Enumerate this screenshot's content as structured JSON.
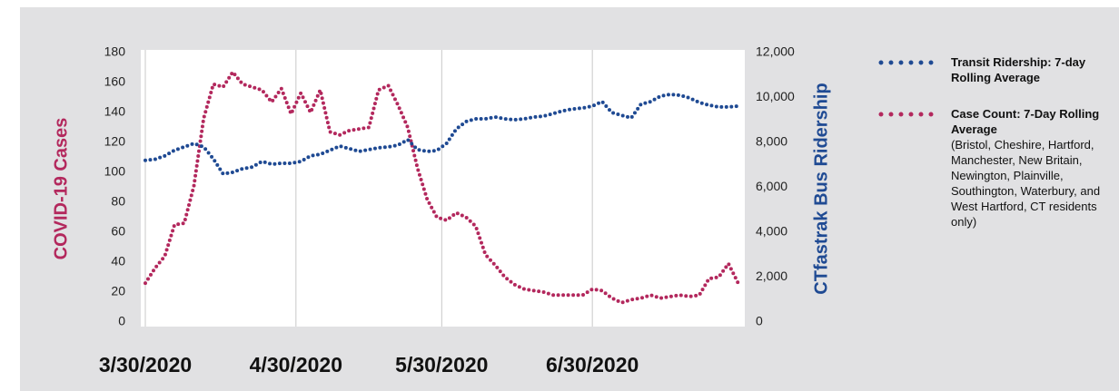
{
  "chart_data": {
    "type": "line",
    "x": [
      "3/30/2020",
      "4/1/2020",
      "4/3/2020",
      "4/5/2020",
      "4/7/2020",
      "4/9/2020",
      "4/11/2020",
      "4/13/2020",
      "4/15/2020",
      "4/17/2020",
      "4/19/2020",
      "4/21/2020",
      "4/23/2020",
      "4/25/2020",
      "4/27/2020",
      "4/29/2020",
      "5/1/2020",
      "5/3/2020",
      "5/5/2020",
      "5/7/2020",
      "5/9/2020",
      "5/11/2020",
      "5/13/2020",
      "5/15/2020",
      "5/17/2020",
      "5/19/2020",
      "5/21/2020",
      "5/23/2020",
      "5/25/2020",
      "5/27/2020",
      "5/29/2020",
      "5/31/2020",
      "6/2/2020",
      "6/4/2020",
      "6/6/2020",
      "6/8/2020",
      "6/10/2020",
      "6/12/2020",
      "6/14/2020",
      "6/16/2020",
      "6/18/2020",
      "6/20/2020",
      "6/22/2020",
      "6/24/2020",
      "6/26/2020",
      "6/28/2020",
      "6/30/2020",
      "7/2/2020",
      "7/4/2020",
      "7/6/2020",
      "7/8/2020",
      "7/10/2020",
      "7/12/2020",
      "7/14/2020",
      "7/16/2020",
      "7/18/2020",
      "7/20/2020",
      "7/22/2020",
      "7/24/2020",
      "7/26/2020",
      "7/28/2020",
      "7/30/2020"
    ],
    "series": [
      {
        "name": "Case Count: 7-Day Rolling Average",
        "note": "(Bristol, Cheshire, Hartford, Manchester, New Britain, Newington, Plainville, Southington, Waterbury, and West Hartford, CT residents only)",
        "color": "#b3285d",
        "values": [
          26,
          36,
          44,
          65,
          66,
          91,
          136,
          159,
          157,
          167,
          159,
          157,
          155,
          147,
          156,
          139,
          153,
          140,
          155,
          127,
          125,
          128,
          129,
          130,
          155,
          158,
          145,
          130,
          103,
          82,
          70,
          68,
          73,
          70,
          64,
          45,
          38,
          30,
          25,
          22,
          21,
          20,
          18,
          18,
          18,
          18,
          22,
          21,
          16,
          13,
          15,
          16,
          18,
          16,
          17,
          18,
          17,
          18,
          29,
          30,
          39,
          26
        ]
      },
      {
        "name": "Transit Ridership: 7-day Rolling Average",
        "color": "#1f4a93",
        "axis": "y2",
        "values": [
          7200,
          7250,
          7400,
          7650,
          7800,
          7950,
          7800,
          7270,
          6600,
          6670,
          6830,
          6900,
          7150,
          7030,
          7070,
          7070,
          7150,
          7400,
          7470,
          7650,
          7840,
          7720,
          7600,
          7680,
          7760,
          7800,
          7880,
          8120,
          7680,
          7600,
          7640,
          7960,
          8600,
          8930,
          9050,
          9050,
          9130,
          9050,
          9010,
          9050,
          9130,
          9170,
          9290,
          9410,
          9490,
          9530,
          9620,
          9820,
          9330,
          9210,
          9090,
          9700,
          9820,
          10060,
          10140,
          10100,
          9980,
          9780,
          9660,
          9580,
          9580,
          9620
        ]
      }
    ],
    "y_label": "COVID-19 Cases",
    "y2_label": "CTfastrak Bus Ridership",
    "xlim": [
      "3/30/2020",
      "7/31/2020"
    ],
    "xticks": [
      "3/30/2020",
      "4/30/2020",
      "5/30/2020",
      "6/30/2020"
    ],
    "xgrid": true,
    "ylim": [
      0,
      180
    ],
    "yticks": [
      0,
      20,
      40,
      60,
      80,
      100,
      120,
      140,
      160,
      180
    ],
    "y2lim": [
      0,
      12000
    ],
    "y2ticks": [
      0,
      {
        "value": 2000,
        "label": "2,000"
      },
      {
        "value": 4000,
        "label": "4,000"
      },
      {
        "value": 6000,
        "label": "6,000"
      },
      {
        "value": 8000,
        "label": "8,000"
      },
      {
        "value": 10000,
        "label": "10,000"
      },
      {
        "value": 12000,
        "label": "12,000"
      }
    ]
  }
}
